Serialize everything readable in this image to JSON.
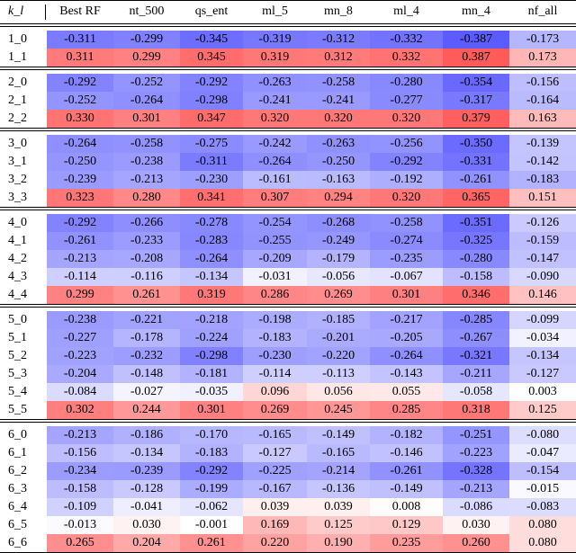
{
  "table": {
    "header": [
      "k_l",
      "Best RF",
      "nt_500",
      "qs_ent",
      "ml_5",
      "mn_8",
      "ml_4",
      "mn_4",
      "nf_all"
    ],
    "groups": [
      {
        "rows": [
          {
            "label": "1_0",
            "values": [
              "-0.311",
              "-0.299",
              "-0.345",
              "-0.319",
              "-0.312",
              "-0.332",
              "-0.387",
              "-0.173"
            ]
          },
          {
            "label": "1_1",
            "values": [
              "0.311",
              "0.299",
              "0.345",
              "0.319",
              "0.312",
              "0.332",
              "0.387",
              "0.173"
            ]
          }
        ]
      },
      {
        "rows": [
          {
            "label": "2_0",
            "values": [
              "-0.292",
              "-0.252",
              "-0.292",
              "-0.263",
              "-0.258",
              "-0.280",
              "-0.354",
              "-0.156"
            ]
          },
          {
            "label": "2_1",
            "values": [
              "-0.252",
              "-0.264",
              "-0.298",
              "-0.241",
              "-0.241",
              "-0.277",
              "-0.317",
              "-0.164"
            ]
          },
          {
            "label": "2_2",
            "values": [
              "0.330",
              "0.301",
              "0.347",
              "0.320",
              "0.320",
              "0.320",
              "0.379",
              "0.163"
            ]
          }
        ]
      },
      {
        "rows": [
          {
            "label": "3_0",
            "values": [
              "-0.264",
              "-0.258",
              "-0.275",
              "-0.242",
              "-0.263",
              "-0.256",
              "-0.350",
              "-0.139"
            ]
          },
          {
            "label": "3_1",
            "values": [
              "-0.250",
              "-0.238",
              "-0.311",
              "-0.264",
              "-0.250",
              "-0.292",
              "-0.331",
              "-0.142"
            ]
          },
          {
            "label": "3_2",
            "values": [
              "-0.239",
              "-0.213",
              "-0.230",
              "-0.161",
              "-0.163",
              "-0.192",
              "-0.261",
              "-0.183"
            ]
          },
          {
            "label": "3_3",
            "values": [
              "0.323",
              "0.280",
              "0.341",
              "0.307",
              "0.294",
              "0.320",
              "0.365",
              "0.151"
            ]
          }
        ]
      },
      {
        "rows": [
          {
            "label": "4_0",
            "values": [
              "-0.292",
              "-0.266",
              "-0.278",
              "-0.254",
              "-0.268",
              "-0.258",
              "-0.351",
              "-0.126"
            ]
          },
          {
            "label": "4_1",
            "values": [
              "-0.261",
              "-0.233",
              "-0.283",
              "-0.255",
              "-0.249",
              "-0.274",
              "-0.325",
              "-0.159"
            ]
          },
          {
            "label": "4_2",
            "values": [
              "-0.213",
              "-0.208",
              "-0.264",
              "-0.209",
              "-0.179",
              "-0.235",
              "-0.280",
              "-0.147"
            ]
          },
          {
            "label": "4_3",
            "values": [
              "-0.114",
              "-0.116",
              "-0.134",
              "-0.031",
              "-0.056",
              "-0.067",
              "-0.158",
              "-0.090"
            ]
          },
          {
            "label": "4_4",
            "values": [
              "0.299",
              "0.261",
              "0.319",
              "0.286",
              "0.269",
              "0.301",
              "0.346",
              "0.146"
            ]
          }
        ]
      },
      {
        "rows": [
          {
            "label": "5_0",
            "values": [
              "-0.238",
              "-0.221",
              "-0.218",
              "-0.198",
              "-0.185",
              "-0.217",
              "-0.285",
              "-0.099"
            ]
          },
          {
            "label": "5_1",
            "values": [
              "-0.227",
              "-0.178",
              "-0.224",
              "-0.183",
              "-0.201",
              "-0.205",
              "-0.267",
              "-0.034"
            ]
          },
          {
            "label": "5_2",
            "values": [
              "-0.223",
              "-0.232",
              "-0.298",
              "-0.230",
              "-0.220",
              "-0.264",
              "-0.321",
              "-0.134"
            ]
          },
          {
            "label": "5_3",
            "values": [
              "-0.204",
              "-0.148",
              "-0.181",
              "-0.114",
              "-0.113",
              "-0.143",
              "-0.211",
              "-0.127"
            ]
          },
          {
            "label": "5_4",
            "values": [
              "-0.084",
              "-0.027",
              "-0.035",
              "0.096",
              "0.056",
              "0.055",
              "-0.058",
              "0.003"
            ]
          },
          {
            "label": "5_5",
            "values": [
              "0.302",
              "0.244",
              "0.301",
              "0.269",
              "0.245",
              "0.285",
              "0.318",
              "0.125"
            ]
          }
        ]
      },
      {
        "rows": [
          {
            "label": "6_0",
            "values": [
              "-0.213",
              "-0.186",
              "-0.170",
              "-0.165",
              "-0.149",
              "-0.182",
              "-0.251",
              "-0.080"
            ]
          },
          {
            "label": "6_1",
            "values": [
              "-0.156",
              "-0.134",
              "-0.183",
              "-0.127",
              "-0.165",
              "-0.146",
              "-0.223",
              "-0.047"
            ]
          },
          {
            "label": "6_2",
            "values": [
              "-0.234",
              "-0.239",
              "-0.292",
              "-0.225",
              "-0.214",
              "-0.261",
              "-0.328",
              "-0.154"
            ]
          },
          {
            "label": "6_3",
            "values": [
              "-0.158",
              "-0.128",
              "-0.199",
              "-0.167",
              "-0.136",
              "-0.149",
              "-0.213",
              "-0.015"
            ]
          },
          {
            "label": "6_4",
            "values": [
              "-0.109",
              "-0.041",
              "-0.062",
              "0.039",
              "0.039",
              "0.008",
              "-0.086",
              "-0.083"
            ]
          },
          {
            "label": "6_5",
            "values": [
              "-0.013",
              "0.030",
              "-0.001",
              "0.169",
              "0.125",
              "0.129",
              "0.030",
              "0.080"
            ]
          },
          {
            "label": "6_6",
            "values": [
              "0.265",
              "0.204",
              "0.261",
              "0.220",
              "0.190",
              "0.235",
              "0.260",
              "0.080"
            ]
          }
        ]
      }
    ]
  },
  "colors": {
    "negative": "#5a5aff",
    "positive": "#ff5a5a",
    "neutral": "#ffffff"
  }
}
